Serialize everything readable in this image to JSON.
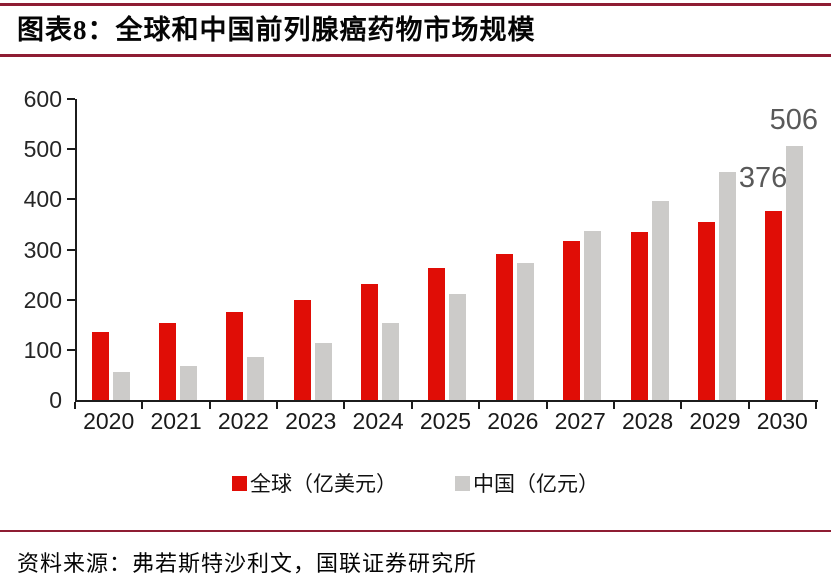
{
  "figure": {
    "title": "图表8：全球和中国前列腺癌药物市场规模",
    "source": "资料来源：弗若斯特沙利文，国联证券研究所"
  },
  "colors": {
    "accent_rule": "#8E1D33",
    "global_series": "#E00D06",
    "china_series": "#CCCBC9",
    "data_label": "#595959",
    "axis": "#1C1C1C"
  },
  "chart_data": {
    "type": "bar",
    "title": "全球和中国前列腺癌药物市场规模",
    "categories": [
      "2020",
      "2021",
      "2022",
      "2023",
      "2024",
      "2025",
      "2026",
      "2027",
      "2028",
      "2029",
      "2030"
    ],
    "series": [
      {
        "name": "全球（亿美元）",
        "color_key": "global_series",
        "values": [
          136,
          153,
          176,
          200,
          232,
          264,
          292,
          316,
          334,
          355,
          376
        ]
      },
      {
        "name": "中国（亿元）",
        "color_key": "china_series",
        "values": [
          56,
          68,
          86,
          113,
          154,
          211,
          274,
          337,
          397,
          454,
          506
        ]
      }
    ],
    "y_ticks": [
      0,
      100,
      200,
      300,
      400,
      500,
      600
    ],
    "ylim": [
      0,
      600
    ],
    "xlabel": "",
    "ylabel": "",
    "grid": false,
    "legend_position": "bottom",
    "data_labels": [
      {
        "series_index": 0,
        "category": "2030",
        "text": "376"
      },
      {
        "series_index": 1,
        "category": "2030",
        "text": "506"
      }
    ]
  }
}
